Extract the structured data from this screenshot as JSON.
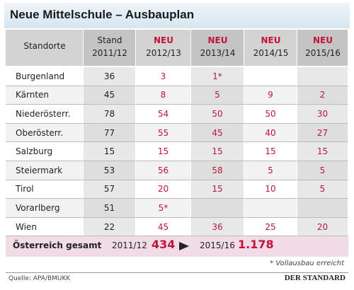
{
  "header": {
    "title": "Neue Mittelschule – Ausbauplan"
  },
  "table": {
    "columns": [
      {
        "label": "Standorte"
      },
      {
        "label": "Stand",
        "sub": "2011/12"
      },
      {
        "tag": "NEU",
        "sub": "2012/13"
      },
      {
        "tag": "NEU",
        "sub": "2013/14"
      },
      {
        "tag": "NEU",
        "sub": "2014/15"
      },
      {
        "tag": "NEU",
        "sub": "2015/16"
      }
    ],
    "rows": [
      [
        "Burgenland",
        36,
        3,
        "1*",
        null,
        null
      ],
      [
        "Kärnten",
        45,
        8,
        5,
        9,
        2
      ],
      [
        "Niederösterr.",
        78,
        54,
        50,
        50,
        30
      ],
      [
        "Oberösterr.",
        77,
        55,
        45,
        40,
        27
      ],
      [
        "Salzburg",
        15,
        15,
        15,
        15,
        15
      ],
      [
        "Steiermark",
        53,
        56,
        58,
        5,
        5
      ],
      [
        "Tirol",
        57,
        20,
        15,
        10,
        5
      ],
      [
        "Vorarlberg",
        51,
        "5*",
        null,
        null,
        null
      ],
      [
        "Wien",
        22,
        45,
        36,
        25,
        20
      ]
    ]
  },
  "total": {
    "label": "Österreich gesamt",
    "from_year": "2011/12",
    "from_value": 434,
    "to_year": "2015/16",
    "to_value": "1.178"
  },
  "footnote": "* Vollausbau erreicht",
  "source": "Quelle: APA/BMUKK",
  "brand": "DER STANDARD"
}
